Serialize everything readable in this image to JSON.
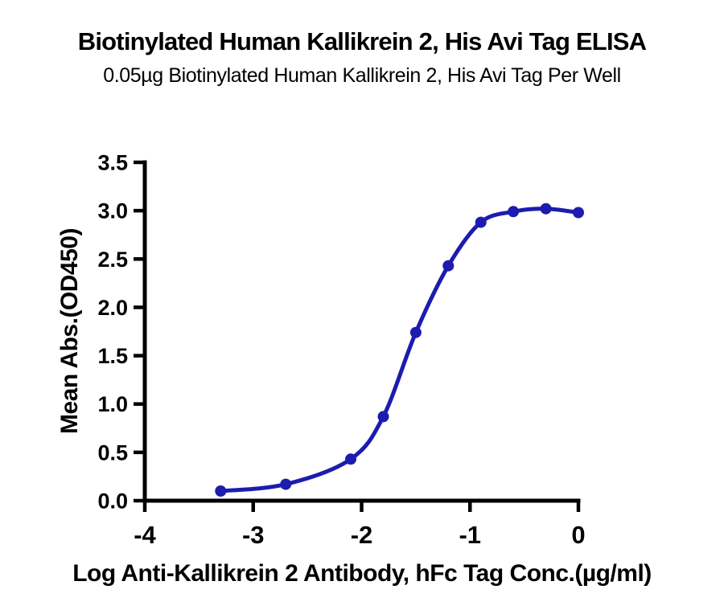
{
  "header": {
    "title": "Biotinylated Human Kallikrein 2, His Avi Tag ELISA",
    "subtitle": "0.05µg Biotinylated Human Kallikrein 2, His Avi Tag Per Well"
  },
  "chart_data": {
    "type": "line",
    "title": "Biotinylated Human Kallikrein 2, His Avi Tag ELISA",
    "subtitle": "0.05µg Biotinylated Human Kallikrein 2, His Avi Tag Per Well",
    "xlabel": "Log Anti-Kallikrein 2 Antibody, hFc Tag Conc.(µg/ml)",
    "ylabel": "Mean Abs.(OD450)",
    "x": [
      -3.3,
      -2.7,
      -2.1,
      -1.8,
      -1.5,
      -1.2,
      -0.9,
      -0.6,
      -0.3,
      0.0
    ],
    "y": [
      0.1,
      0.17,
      0.43,
      0.87,
      1.74,
      2.43,
      2.88,
      2.99,
      3.02,
      2.98
    ],
    "xlim": [
      -4,
      0
    ],
    "ylim": [
      0,
      3.5
    ],
    "x_ticks": [
      -4,
      -3,
      -2,
      -1,
      0
    ],
    "y_ticks": [
      0.0,
      0.5,
      1.0,
      1.5,
      2.0,
      2.5,
      3.0,
      3.5
    ],
    "x_tick_labels": [
      "-4",
      "-3",
      "-2",
      "-1",
      "0"
    ],
    "y_tick_labels": [
      "0.0",
      "0.5",
      "1.0",
      "1.5",
      "2.0",
      "2.5",
      "3.0",
      "3.5"
    ],
    "grid": false,
    "legend": "none",
    "curve_style": "sigmoidal 4PL fit through points with round markers",
    "colors": {
      "line": "#1c1caf",
      "marker": "#1c1caf",
      "axis": "#000000",
      "text": "#000000",
      "background": "#ffffff"
    }
  }
}
